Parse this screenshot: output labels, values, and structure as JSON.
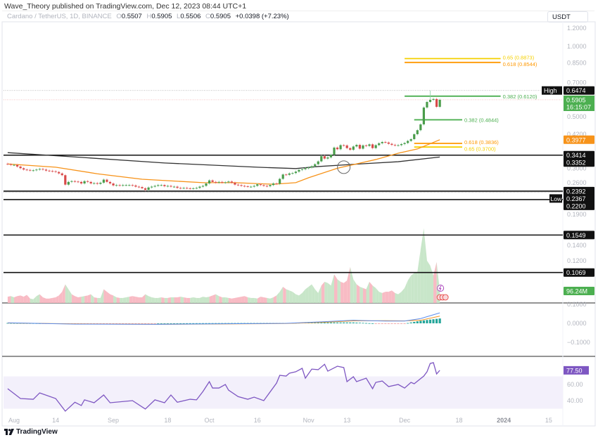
{
  "header": {
    "published": "Wave_Theory published on TradingView.com, Dec 12, 2023 08:44 UTC+1",
    "symbol": "Cardano / TetherUS, 1D, BINANCE",
    "o_label": "O",
    "o": "0.5507",
    "h_label": "H",
    "h": "0.5905",
    "l_label": "L",
    "l": "0.5506",
    "c_label": "C",
    "c": "0.5905",
    "change": "+0.0398 (+7.23%)"
  },
  "currency_button": "USDT",
  "footer": {
    "logo_text": "TradingView"
  },
  "colors": {
    "up": "#4a9c4a",
    "down": "#d84a4a",
    "volume_up": "#c8e6c9",
    "volume_down": "#f8bbc4",
    "ema_orange": "#f7931a",
    "ema_black": "#333333",
    "fib_green": "#4caf50",
    "fib_orange": "#ff9800",
    "fib_yellow": "#f5d000",
    "rsi": "#7e57c2",
    "rsi_band": "#f3f0fb",
    "macd_line": "#5b8def",
    "macd_signal": "#f7931a"
  },
  "chart_data": {
    "type": "candlestick",
    "scale": "log",
    "start_date": "2023-07-30",
    "close": [
      0.312,
      0.31,
      0.31,
      0.305,
      0.3,
      0.296,
      0.295,
      0.293,
      0.294,
      0.296,
      0.298,
      0.296,
      0.293,
      0.292,
      0.291,
      0.289,
      0.285,
      0.28,
      0.255,
      0.262,
      0.264,
      0.263,
      0.262,
      0.258,
      0.264,
      0.262,
      0.258,
      0.259,
      0.257,
      0.26,
      0.268,
      0.262,
      0.258,
      0.253,
      0.254,
      0.253,
      0.254,
      0.254,
      0.254,
      0.253,
      0.25,
      0.249,
      0.246,
      0.242,
      0.248,
      0.25,
      0.252,
      0.254,
      0.254,
      0.251,
      0.252,
      0.25,
      0.25,
      0.247,
      0.246,
      0.247,
      0.246,
      0.245,
      0.246,
      0.247,
      0.25,
      0.252,
      0.258,
      0.266,
      0.262,
      0.26,
      0.262,
      0.26,
      0.261,
      0.263,
      0.26,
      0.255,
      0.254,
      0.252,
      0.251,
      0.25,
      0.25,
      0.252,
      0.256,
      0.254,
      0.252,
      0.251,
      0.254,
      0.258,
      0.257,
      0.27,
      0.282,
      0.281,
      0.285,
      0.286,
      0.29,
      0.295,
      0.297,
      0.3,
      0.302,
      0.306,
      0.312,
      0.321,
      0.338,
      0.33,
      0.334,
      0.343,
      0.368,
      0.362,
      0.377,
      0.376,
      0.366,
      0.36,
      0.372,
      0.378,
      0.364,
      0.376,
      0.374,
      0.38,
      0.366,
      0.377,
      0.384,
      0.389,
      0.387,
      0.382,
      0.378,
      0.376,
      0.377,
      0.381,
      0.385,
      0.393,
      0.4,
      0.42,
      0.437,
      0.463,
      0.547,
      0.578,
      0.59,
      0.595,
      0.5507,
      0.5905
    ],
    "session_high": {
      "label": "High",
      "value": 0.6474,
      "text": "0.6474",
      "date": "2023-12-09"
    },
    "session_low": {
      "label": "Low",
      "value": 0.2367,
      "text": "0.2367"
    },
    "last_price": {
      "value": 0.5905,
      "text": "0.5905",
      "countdown": "16:15:07"
    },
    "ema_orange": {
      "last": 0.3977,
      "last_text": "0.3977",
      "points": [
        [
          "2023-07-30",
          0.313
        ],
        [
          "2023-08-14",
          0.303
        ],
        [
          "2023-08-27",
          0.284
        ],
        [
          "2023-09-10",
          0.269
        ],
        [
          "2023-09-29",
          0.26
        ],
        [
          "2023-10-09",
          0.26
        ],
        [
          "2023-10-21",
          0.256
        ],
        [
          "2023-10-28",
          0.26
        ],
        [
          "2023-11-01",
          0.273
        ],
        [
          "2023-11-10",
          0.3
        ],
        [
          "2023-11-22",
          0.327
        ],
        [
          "2023-11-29",
          0.348
        ],
        [
          "2023-12-05",
          0.363
        ],
        [
          "2023-12-12",
          0.3977
        ]
      ]
    },
    "ema_black": {
      "last": 0.3352,
      "last_text": "0.3352",
      "points": [
        [
          "2023-07-30",
          0.35
        ],
        [
          "2023-08-19",
          0.336
        ],
        [
          "2023-09-17",
          0.316
        ],
        [
          "2023-10-16",
          0.303
        ],
        [
          "2023-10-28",
          0.299
        ],
        [
          "2023-11-04",
          0.305
        ],
        [
          "2023-11-17",
          0.313
        ],
        [
          "2023-11-29",
          0.32
        ],
        [
          "2023-12-12",
          0.3352
        ]
      ]
    },
    "cross_marker": {
      "date": "2023-11-12",
      "value": 0.303
    },
    "levels": [
      {
        "value": 0.3414,
        "text": "0.3414"
      },
      {
        "value": 0.2392,
        "text": "0.2392"
      },
      {
        "value": 0.22,
        "text": "0.2200"
      },
      {
        "value": 0.1549,
        "text": "0.1549"
      },
      {
        "value": 0.1069,
        "text": "0.1069"
      }
    ],
    "fib": [
      {
        "text": "0.65 (0.8873)",
        "value": 0.8873,
        "color": "#f5d000",
        "from": "2023-12-01",
        "to": "2023-12-31"
      },
      {
        "text": "0.618 (0.8544)",
        "value": 0.8544,
        "color": "#ff9800",
        "from": "2023-12-01",
        "to": "2023-12-31"
      },
      {
        "text": "0.382 (0.6120)",
        "value": 0.612,
        "color": "#4caf50",
        "from": "2023-12-01",
        "to": "2023-12-31"
      },
      {
        "text": "0.382 (0.4844)",
        "value": 0.4844,
        "color": "#4caf50",
        "from": "2023-12-04",
        "to": "2023-12-19"
      },
      {
        "text": "0.618 (0.3836)",
        "value": 0.3836,
        "color": "#ff9800",
        "from": "2023-12-04",
        "to": "2023-12-19"
      },
      {
        "text": "0.65 (0.3700)",
        "value": 0.37,
        "color": "#f5d000",
        "from": "2023-12-04",
        "to": "2023-12-19"
      }
    ],
    "price_axis": {
      "ticks": [
        1.2,
        1.0,
        0.85,
        0.7,
        0.5,
        0.42,
        0.3,
        0.26,
        0.19,
        0.14,
        0.12
      ],
      "tick_labels": [
        "1.2000",
        "1.0000",
        "0.8500",
        "0.7000",
        "0.5000",
        "0.4200",
        "0.3000",
        "0.2600",
        "0.1900",
        "0.1400",
        "0.1200"
      ]
    },
    "x_axis": {
      "ticks": [
        {
          "label": "Aug",
          "date": "2023-08-01"
        },
        {
          "label": "14",
          "date": "2023-08-14"
        },
        {
          "label": "Sep",
          "date": "2023-09-01"
        },
        {
          "label": "18",
          "date": "2023-09-18"
        },
        {
          "label": "Oct",
          "date": "2023-10-01"
        },
        {
          "label": "16",
          "date": "2023-10-16"
        },
        {
          "label": "Nov",
          "date": "2023-11-01"
        },
        {
          "label": "13",
          "date": "2023-11-13"
        },
        {
          "label": "Dec",
          "date": "2023-12-01"
        },
        {
          "label": "18",
          "date": "2023-12-18"
        },
        {
          "label": "2024",
          "date": "2024-01-01"
        },
        {
          "label": "15",
          "date": "2024-01-15"
        }
      ]
    },
    "volume": {
      "unit": "M",
      "values": [
        50,
        55,
        45,
        55,
        60,
        50,
        65,
        35,
        30,
        55,
        70,
        45,
        35,
        35,
        40,
        45,
        60,
        90,
        150,
        110,
        70,
        55,
        45,
        50,
        55,
        60,
        70,
        45,
        40,
        40,
        110,
        90,
        70,
        60,
        45,
        40,
        40,
        45,
        50,
        55,
        50,
        45,
        45,
        70,
        55,
        45,
        40,
        40,
        45,
        40,
        40,
        45,
        45,
        45,
        50,
        45,
        40,
        40,
        45,
        40,
        40,
        50,
        45,
        50,
        60,
        70,
        55,
        45,
        45,
        40,
        35,
        40,
        45,
        50,
        55,
        45,
        40,
        40,
        35,
        50,
        45,
        40,
        35,
        45,
        60,
        90,
        130,
        110,
        100,
        90,
        70,
        60,
        80,
        110,
        130,
        150,
        110,
        80,
        140,
        170,
        160,
        140,
        230,
        190,
        170,
        160,
        180,
        290,
        190,
        150,
        130,
        120,
        110,
        170,
        140,
        120,
        90,
        80,
        90,
        90,
        100,
        80,
        70,
        90,
        120,
        180,
        220,
        240,
        250,
        430,
        600,
        340,
        300,
        220,
        330,
        96.24
      ],
      "last_text": "96.24M"
    },
    "macd": {
      "axis": [
        {
          "value": 0.1,
          "text": "0.1000"
        },
        {
          "value": 0,
          "text": "0.0000"
        },
        {
          "value": -0.1,
          "text": "−0.1000"
        }
      ],
      "points": [
        [
          "2023-07-30",
          0.003,
          0.002
        ],
        [
          "2023-08-20",
          -0.004,
          -0.003
        ],
        [
          "2023-09-15",
          -0.005,
          -0.005
        ],
        [
          "2023-10-10",
          -0.002,
          -0.003
        ],
        [
          "2023-10-25",
          0.0,
          -0.001
        ],
        [
          "2023-11-05",
          0.008,
          0.005
        ],
        [
          "2023-11-15",
          0.016,
          0.013
        ],
        [
          "2023-11-25",
          0.012,
          0.014
        ],
        [
          "2023-12-01",
          0.012,
          0.013
        ],
        [
          "2023-12-06",
          0.025,
          0.016
        ],
        [
          "2023-12-12",
          0.055,
          0.038
        ]
      ]
    },
    "rsi": {
      "band": [
        30,
        70
      ],
      "axis": [
        {
          "value": 60,
          "text": "60.00"
        },
        {
          "value": 40,
          "text": "40.00"
        }
      ],
      "last_text": "77.50",
      "points": [
        [
          "2023-07-30",
          54.8
        ],
        [
          "2023-08-03",
          42.6
        ],
        [
          "2023-08-07",
          41.7
        ],
        [
          "2023-08-09",
          49.6
        ],
        [
          "2023-08-14",
          42.6
        ],
        [
          "2023-08-17",
          27
        ],
        [
          "2023-08-20",
          38
        ],
        [
          "2023-08-22",
          34
        ],
        [
          "2023-08-23",
          41
        ],
        [
          "2023-08-26",
          37.4
        ],
        [
          "2023-08-29",
          47
        ],
        [
          "2023-08-31",
          37.4
        ],
        [
          "2023-09-07",
          40
        ],
        [
          "2023-09-11",
          29.6
        ],
        [
          "2023-09-14",
          41
        ],
        [
          "2023-09-17",
          37.4
        ],
        [
          "2023-09-19",
          47
        ],
        [
          "2023-09-21",
          38
        ],
        [
          "2023-09-25",
          41.7
        ],
        [
          "2023-09-27",
          41
        ],
        [
          "2023-09-29",
          51.3
        ],
        [
          "2023-10-01",
          63.5
        ],
        [
          "2023-10-02",
          55.6
        ],
        [
          "2023-10-04",
          55.6
        ],
        [
          "2023-10-06",
          60
        ],
        [
          "2023-10-07",
          53
        ],
        [
          "2023-10-10",
          45
        ],
        [
          "2023-10-13",
          41.7
        ],
        [
          "2023-10-15",
          44.3
        ],
        [
          "2023-10-18",
          40
        ],
        [
          "2023-10-22",
          61.7
        ],
        [
          "2023-10-23",
          71.3
        ],
        [
          "2023-10-25",
          70.4
        ],
        [
          "2023-10-26",
          73.9
        ],
        [
          "2023-10-28",
          75.7
        ],
        [
          "2023-10-30",
          80
        ],
        [
          "2023-10-31",
          67.8
        ],
        [
          "2023-11-02",
          79
        ],
        [
          "2023-11-04",
          78.3
        ],
        [
          "2023-11-06",
          85
        ],
        [
          "2023-11-07",
          76.5
        ],
        [
          "2023-11-10",
          82.6
        ],
        [
          "2023-11-12",
          80.9
        ],
        [
          "2023-11-13",
          63.5
        ],
        [
          "2023-11-15",
          69.6
        ],
        [
          "2023-11-16",
          63.5
        ],
        [
          "2023-11-19",
          67.8
        ],
        [
          "2023-11-21",
          54.8
        ],
        [
          "2023-11-22",
          62.6
        ],
        [
          "2023-11-24",
          64.3
        ],
        [
          "2023-11-26",
          57.4
        ],
        [
          "2023-11-29",
          60
        ],
        [
          "2023-12-01",
          55.6
        ],
        [
          "2023-12-03",
          62.6
        ],
        [
          "2023-12-04",
          60.9
        ],
        [
          "2023-12-07",
          70.4
        ],
        [
          "2023-12-08",
          75.7
        ],
        [
          "2023-12-09",
          86
        ],
        [
          "2023-12-10",
          87
        ],
        [
          "2023-12-11",
          73
        ],
        [
          "2023-12-12",
          77.5
        ]
      ]
    }
  }
}
